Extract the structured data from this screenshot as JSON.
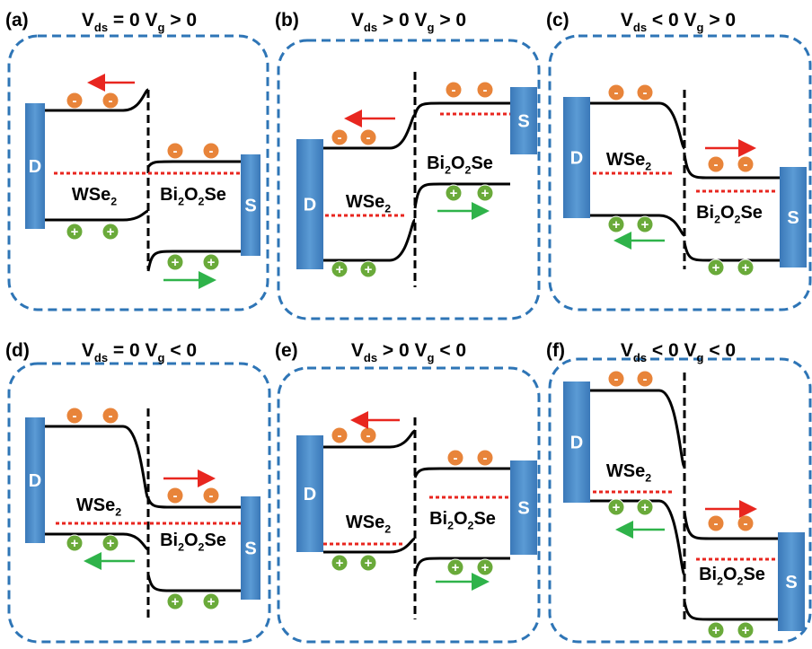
{
  "electron_sign": "-",
  "hole_sign": "+",
  "panels": [
    {
      "label": "(a)",
      "title": [
        "V",
        "ds",
        " = 0 V",
        "g",
        " > 0"
      ],
      "drain": "D",
      "source": "S",
      "left_material": [
        "WSe",
        "2"
      ],
      "right_material": [
        "Bi",
        "2",
        "O",
        "2",
        "Se"
      ]
    },
    {
      "label": "(b)",
      "title": [
        "V",
        "ds",
        " > 0 V",
        "g",
        " > 0"
      ],
      "drain": "D",
      "source": "S",
      "left_material": [
        "WSe",
        "2"
      ],
      "right_material": [
        "Bi",
        "2",
        "O",
        "2",
        "Se"
      ]
    },
    {
      "label": "(c)",
      "title": [
        "V",
        "ds",
        " < 0 V",
        "g",
        " > 0"
      ],
      "drain": "D",
      "source": "S",
      "left_material": [
        "WSe",
        "2"
      ],
      "right_material": [
        "Bi",
        "2",
        "O",
        "2",
        "Se"
      ]
    },
    {
      "label": "(d)",
      "title": [
        "V",
        "ds",
        " = 0 V",
        "g",
        " < 0"
      ],
      "drain": "D",
      "source": "S",
      "left_material": [
        "WSe",
        "2"
      ],
      "right_material": [
        "Bi",
        "2",
        "O",
        "2",
        "Se"
      ]
    },
    {
      "label": "(e)",
      "title": [
        "V",
        "ds",
        " > 0 V",
        "g",
        " < 0"
      ],
      "drain": "D",
      "source": "S",
      "left_material": [
        "WSe",
        "2"
      ],
      "right_material": [
        "Bi",
        "2",
        "O",
        "2",
        "Se"
      ]
    },
    {
      "label": "(f)",
      "title": [
        "V",
        "ds",
        " < 0 V",
        "g",
        " < 0"
      ],
      "drain": "D",
      "source": "S",
      "left_material": [
        "WSe",
        "2"
      ],
      "right_material": [
        "Bi",
        "2",
        "O",
        "2",
        "Se"
      ]
    }
  ]
}
